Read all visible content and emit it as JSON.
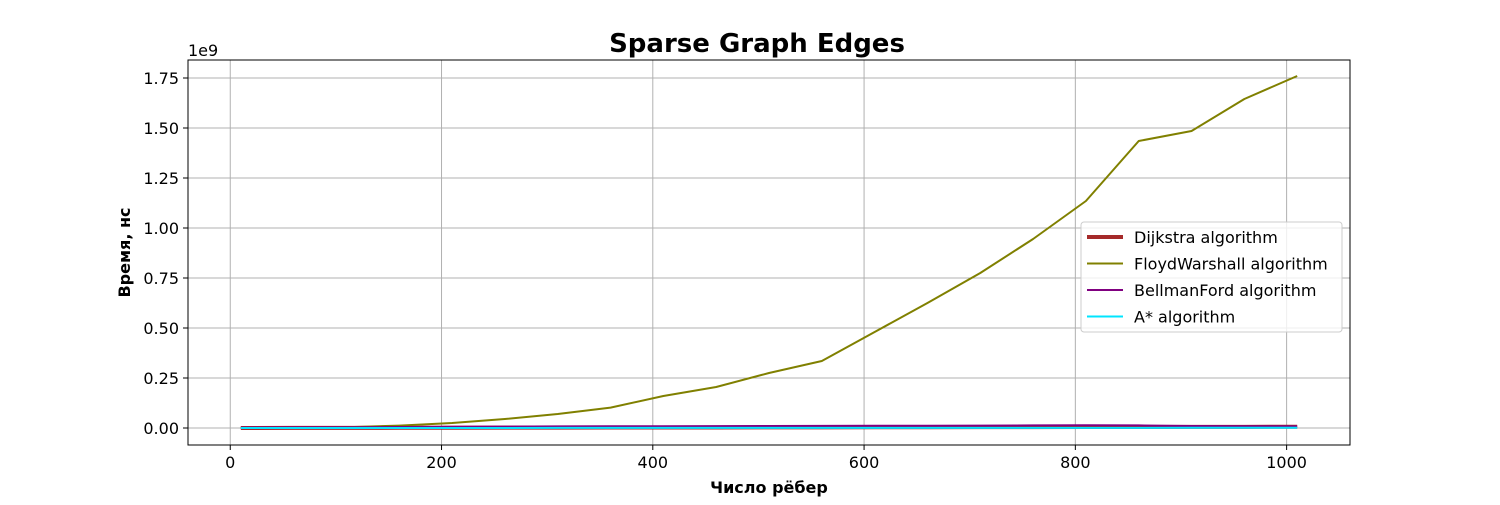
{
  "chart_data": {
    "type": "line",
    "title": "Sparse Graph Edges",
    "xlabel": "Число рёбер",
    "ylabel": "Время, нс",
    "y_offset_label": "1e9",
    "xlim": [
      -40,
      1060
    ],
    "ylim": [
      -85000000,
      1840000000
    ],
    "x_ticks": [
      0,
      200,
      400,
      600,
      800,
      1000
    ],
    "x_tick_labels": [
      "0",
      "200",
      "400",
      "600",
      "800",
      "1000"
    ],
    "y_ticks": [
      0,
      250000000,
      500000000,
      750000000,
      1000000000,
      1250000000,
      1500000000,
      1750000000
    ],
    "y_tick_labels": [
      "0.00",
      "0.25",
      "0.50",
      "0.75",
      "1.00",
      "1.25",
      "1.50",
      "1.75"
    ],
    "grid": true,
    "legend_position": "center-right",
    "x": [
      10,
      60,
      110,
      160,
      210,
      260,
      310,
      360,
      410,
      460,
      510,
      560,
      610,
      660,
      710,
      760,
      810,
      860,
      910,
      960,
      1010
    ],
    "series": [
      {
        "name": "Dijkstra algorithm",
        "color": "#a52a2a",
        "line_width": "thick",
        "values": [
          100000,
          400000,
          700000,
          1000000,
          1300000,
          1600000,
          1900000,
          2200000,
          2500000,
          2800000,
          3100000,
          3400000,
          3700000,
          4000000,
          4300000,
          4600000,
          4900000,
          5200000,
          5500000,
          5800000,
          6100000
        ]
      },
      {
        "name": "FloydWarshall algorithm",
        "color": "#808000",
        "line_width": "normal",
        "values": [
          0,
          1000000,
          4000000,
          12000000,
          25000000,
          45000000,
          70000000,
          102000000,
          160000000,
          205000000,
          275000000,
          335000000,
          480000000,
          625000000,
          775000000,
          945000000,
          1135000000,
          1435000000,
          1485000000,
          1645000000,
          1760000000
        ]
      },
      {
        "name": "BellmanFord algorithm",
        "color": "#800080",
        "line_width": "normal",
        "values": [
          2000000,
          3000000,
          4000000,
          5000000,
          6000000,
          7000000,
          8000000,
          8500000,
          9000000,
          9500000,
          10000000,
          10500000,
          11000000,
          11500000,
          12000000,
          13000000,
          14000000,
          13000000,
          10000000,
          9000000,
          8000000
        ]
      },
      {
        "name": "A* algorithm",
        "color": "#00e5ff",
        "line_width": "normal",
        "values": [
          50000,
          100000,
          150000,
          200000,
          250000,
          300000,
          350000,
          400000,
          450000,
          500000,
          550000,
          600000,
          650000,
          700000,
          750000,
          800000,
          850000,
          900000,
          950000,
          1000000,
          1050000
        ]
      }
    ]
  }
}
